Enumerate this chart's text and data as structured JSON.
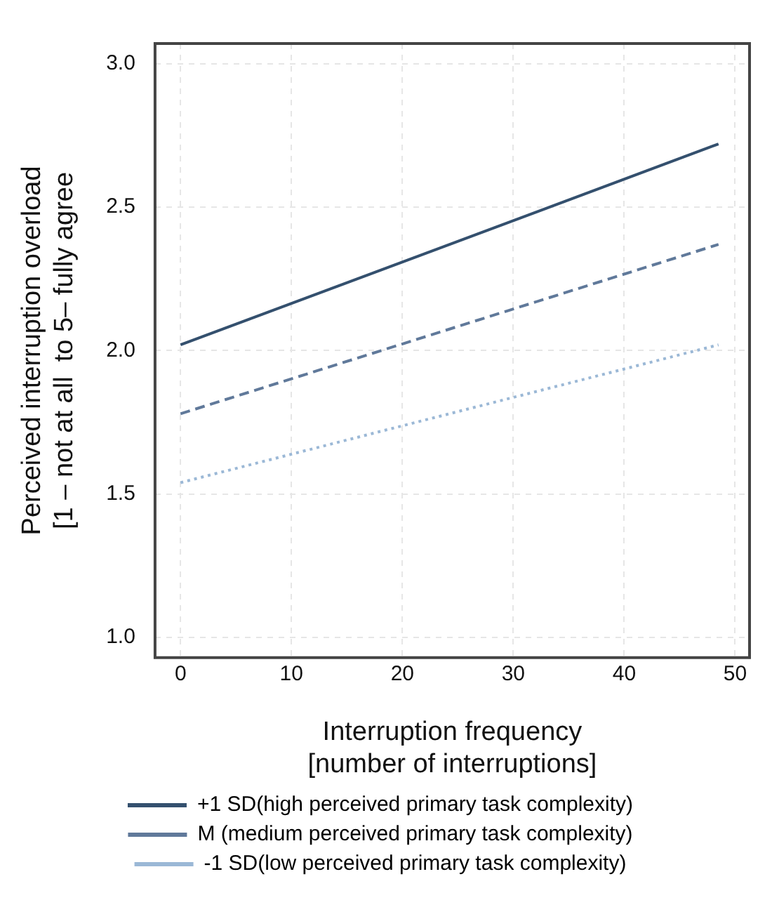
{
  "chart_data": {
    "type": "line",
    "xlabel": "Interruption frequency\n[number of interruptions]",
    "ylabel": "Perceived interruption overload\n[1 – not at all  to 5– fully agree",
    "x": [
      0,
      48.5
    ],
    "series": [
      {
        "name": "+1 SD(high perceived primary task complexity)",
        "color": "#34506e",
        "values": [
          2.02,
          2.72
        ],
        "line_style": "solid"
      },
      {
        "name": "M (medium perceived primary task complexity)",
        "color": "#60799a",
        "values": [
          1.78,
          2.37
        ],
        "line_style": "dashed"
      },
      {
        "name": "-1 SD(low perceived primary task complexity)",
        "color": "#9bb8d6",
        "values": [
          1.54,
          2.02
        ],
        "line_style": "dotted"
      }
    ],
    "xlim": [
      -2.3,
      51.3
    ],
    "xticks": [
      0,
      10,
      20,
      30,
      40,
      50
    ],
    "ylim": [
      0.93,
      3.07
    ],
    "yticks": [
      {
        "value": 1,
        "label": "1.0"
      },
      1.5,
      {
        "value": 2,
        "label": "2.0"
      },
      2.5,
      {
        "value": 3,
        "label": "3.0"
      }
    ],
    "grid": true,
    "legend": "bottom",
    "marker": "none"
  }
}
